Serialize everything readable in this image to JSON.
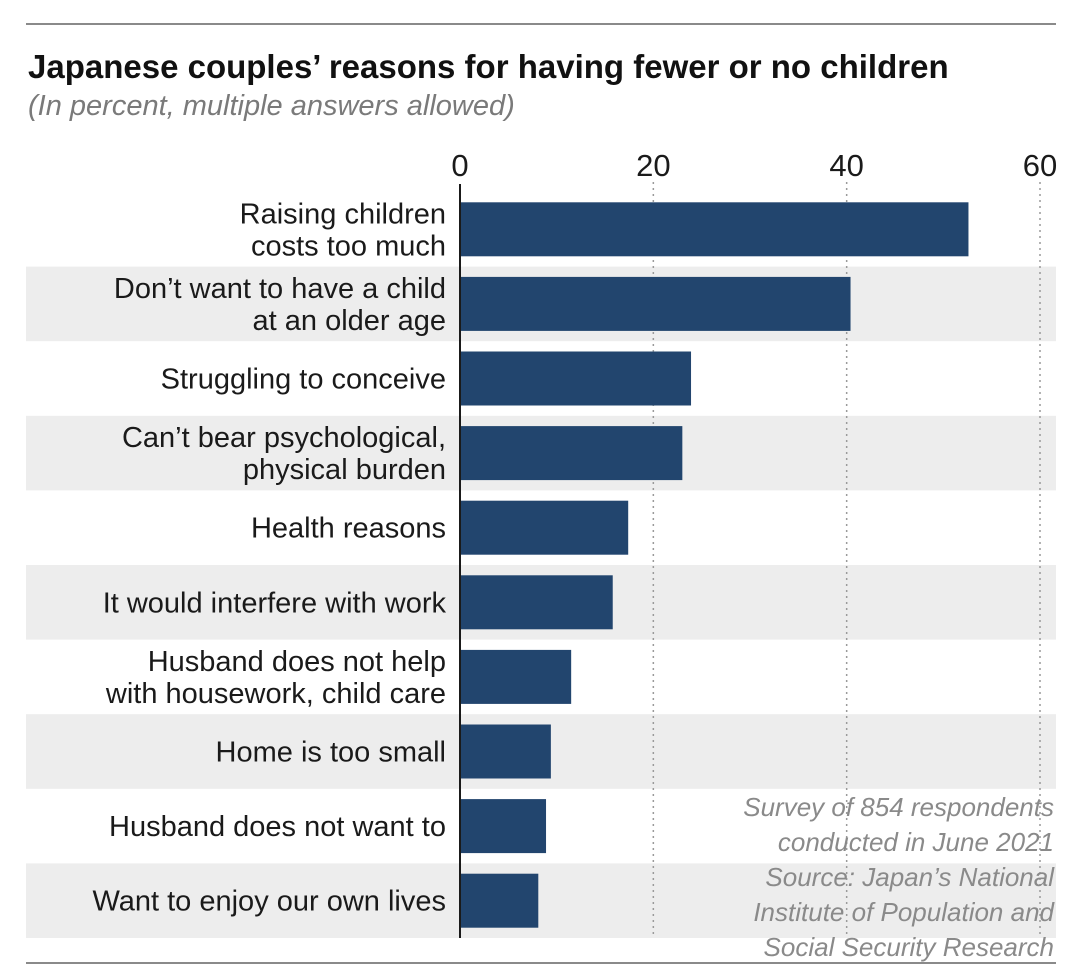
{
  "header": {
    "title": "Japanese couples’ reasons for having fewer or no children",
    "subtitle": "(In percent, multiple answers allowed)"
  },
  "note": {
    "lines": [
      "Survey of 854 respondents",
      "conducted in June 2021",
      "Source: Japan’s National",
      "Institute of Population and",
      "Social Security Research"
    ]
  },
  "colors": {
    "bar": "#22456e",
    "band": "#ededed",
    "grid": "#9a9a9a",
    "axis": "#1a1a1a"
  },
  "chart_data": {
    "type": "bar",
    "orientation": "horizontal",
    "title": "Japanese couples’ reasons for having fewer or no children",
    "subtitle": "(In percent, multiple answers allowed)",
    "xlim": [
      0,
      60
    ],
    "xticks": [
      "0",
      "20",
      "40",
      "60"
    ],
    "grid": "vertical dotted",
    "categories": [
      [
        "Raising children",
        "costs too much"
      ],
      [
        "Don’t want to have a child",
        "at an older age"
      ],
      [
        "Struggling to conceive"
      ],
      [
        "Can’t bear psychological,",
        "physical burden"
      ],
      [
        "Health reasons"
      ],
      [
        "It would interfere with work"
      ],
      [
        "Husband does not help",
        "with housework, child care"
      ],
      [
        "Home is too small"
      ],
      [
        "Husband does not want to"
      ],
      [
        "Want to enjoy our own lives"
      ]
    ],
    "values": [
      52.6,
      40.4,
      23.9,
      23.0,
      17.4,
      15.8,
      11.5,
      9.4,
      8.9,
      8.1
    ]
  }
}
